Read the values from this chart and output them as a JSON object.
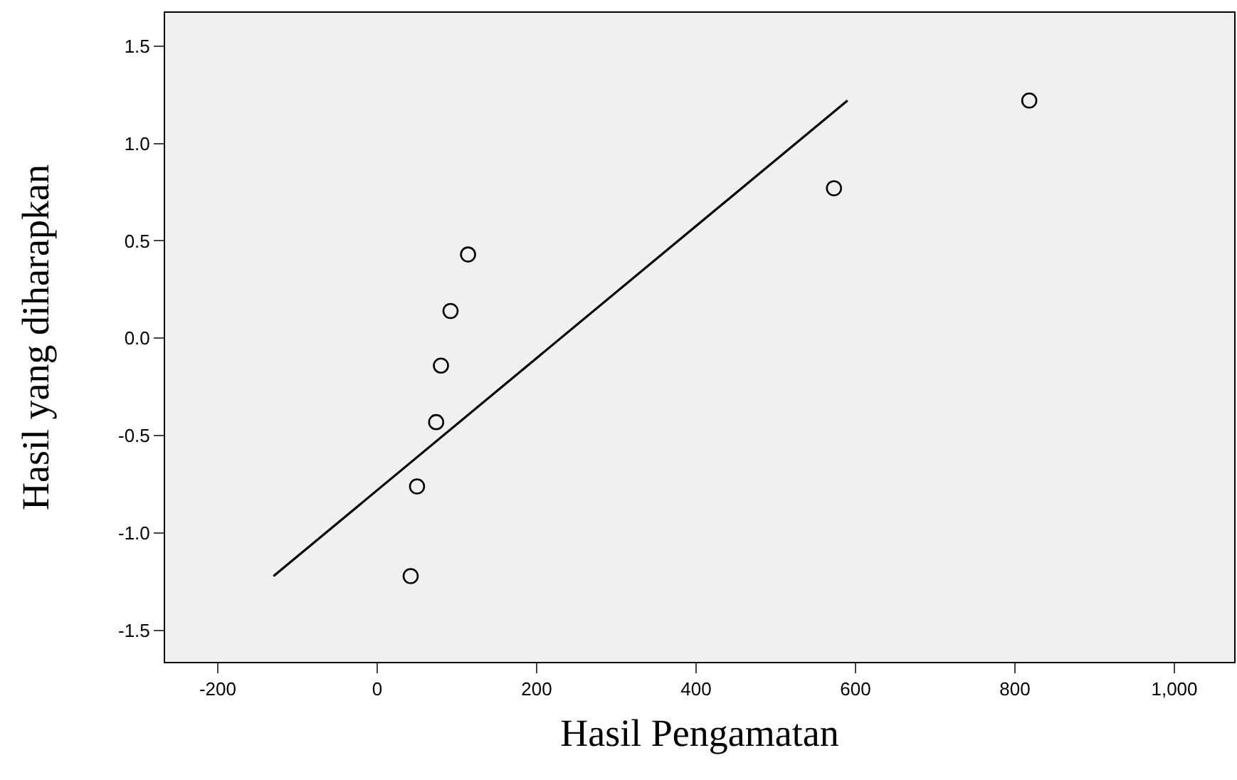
{
  "chart_data": {
    "type": "scatter",
    "xlabel": "Hasil Pengamatan",
    "ylabel": "Hasil yang diharapkan",
    "xlim": [
      -266,
      1075
    ],
    "ylim": [
      -1.66,
      1.67
    ],
    "xticks": [
      -200,
      0,
      200,
      400,
      600,
      800,
      {
        "value": 1000,
        "label": "1,000"
      }
    ],
    "yticks": [
      {
        "value": -1.5,
        "label": "-1.5"
      },
      {
        "value": -1.0,
        "label": "-1.0"
      },
      {
        "value": -0.5,
        "label": "-0.5"
      },
      {
        "value": 0.0,
        "label": "0.0"
      },
      {
        "value": 0.5,
        "label": "0.5"
      },
      {
        "value": 1.0,
        "label": "1.0"
      },
      {
        "value": 1.5,
        "label": "1.5"
      }
    ],
    "grid": false,
    "series": [
      {
        "marker": "circle",
        "color": "#000000",
        "x": [
          42,
          50,
          74,
          80,
          92,
          114,
          573,
          818
        ],
        "values": [
          -1.22,
          -0.76,
          -0.43,
          -0.14,
          0.14,
          0.43,
          0.77,
          1.22
        ]
      },
      {
        "type": "line",
        "marker": "none",
        "line_style": "solid",
        "color": "#000000",
        "x": [
          -130,
          590
        ],
        "values": [
          -1.22,
          1.22
        ]
      }
    ]
  }
}
